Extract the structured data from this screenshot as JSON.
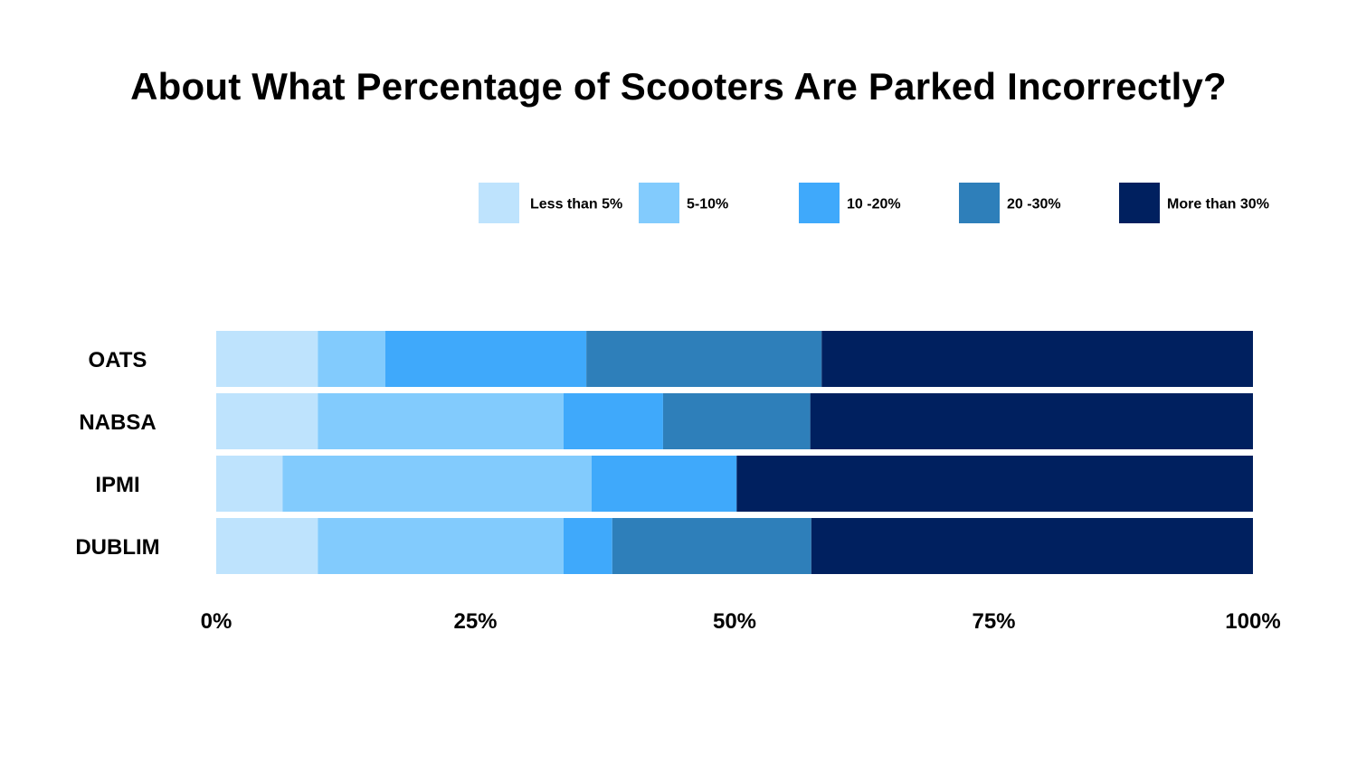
{
  "chart_data": {
    "type": "bar",
    "orientation": "horizontal",
    "stacked": true,
    "title": "About What Percentage of Scooters Are Parked Incorrectly?",
    "categories": [
      "OATS",
      "NABSA",
      "IPMI",
      "DUBLIM"
    ],
    "xlim": [
      0,
      100
    ],
    "x_ticks": [
      0,
      25,
      50,
      75,
      100
    ],
    "x_tick_labels": [
      "0%",
      "25%",
      "50%",
      "75%",
      "100%"
    ],
    "legend_position": "top-right",
    "grid": false,
    "series": [
      {
        "name": "Less than 5%",
        "color": "#BEE3FD",
        "values": [
          9.8,
          9.8,
          6.4,
          9.8
        ]
      },
      {
        "name": "5-10%",
        "color": "#82CBFD",
        "values": [
          6.5,
          23.7,
          29.8,
          23.7
        ]
      },
      {
        "name": "10 -20%",
        "color": "#3FA9FB",
        "values": [
          19.4,
          9.6,
          14.0,
          4.7
        ]
      },
      {
        "name": "20 -30%",
        "color": "#2E7FBA",
        "values": [
          22.7,
          14.2,
          0,
          19.2
        ]
      },
      {
        "name": "More than 30%",
        "color": "#00205F",
        "values": [
          41.6,
          42.7,
          49.8,
          42.6
        ]
      }
    ]
  }
}
